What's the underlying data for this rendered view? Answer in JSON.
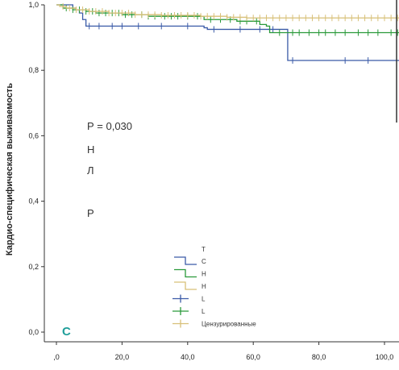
{
  "chart_data": {
    "type": "line",
    "subtype": "kaplan-meier",
    "ylabel": "Кардио-специфическая выживаемость",
    "xlim": [
      0,
      105
    ],
    "ylim": [
      0,
      1
    ],
    "xticks": [
      0,
      20,
      40,
      60,
      80,
      100
    ],
    "xtick_labels": [
      ",0",
      "20,0",
      "40,0",
      "60,0",
      "80,0",
      "100,0"
    ],
    "yticks": [
      0,
      0.2,
      0.4,
      0.6,
      0.8,
      1.0
    ],
    "ytick_labels": [
      "0,0",
      "0,2",
      "0,4",
      "0,6",
      "0,8",
      "1,0"
    ],
    "panel_label": "С",
    "annotation_lines": [
      "Р = 0,030",
      "Н",
      "Л",
      "Р"
    ],
    "series": [
      {
        "color": "#3b5ba8",
        "steps": [
          [
            0,
            1.0
          ],
          [
            5,
            0.99
          ],
          [
            6,
            0.985
          ],
          [
            7,
            0.975
          ],
          [
            8,
            0.955
          ],
          [
            9,
            0.935
          ],
          [
            45,
            0.93
          ],
          [
            46,
            0.925
          ],
          [
            70.5,
            0.83
          ],
          [
            105,
            0.83
          ]
        ],
        "censored": [
          10,
          13,
          17,
          20,
          25,
          32,
          40,
          48,
          56,
          62,
          66,
          72,
          88,
          95
        ]
      },
      {
        "color": "#2a9a3a",
        "steps": [
          [
            0,
            1.0
          ],
          [
            2,
            0.99
          ],
          [
            5,
            0.985
          ],
          [
            9,
            0.98
          ],
          [
            12,
            0.975
          ],
          [
            20,
            0.97
          ],
          [
            28,
            0.965
          ],
          [
            40,
            0.965
          ],
          [
            45,
            0.955
          ],
          [
            55,
            0.95
          ],
          [
            62,
            0.94
          ],
          [
            64,
            0.935
          ],
          [
            65,
            0.915
          ],
          [
            105,
            0.915
          ]
        ],
        "censored": [
          3,
          5,
          7,
          9,
          11,
          13,
          15,
          17,
          19,
          21,
          23,
          26,
          28,
          30,
          33,
          35,
          37,
          40,
          43,
          47,
          50,
          53,
          56,
          58,
          61,
          68,
          72,
          74,
          77,
          80,
          82,
          85,
          88,
          92,
          95,
          98,
          102,
          104
        ]
      },
      {
        "color": "#d8c078",
        "steps": [
          [
            0,
            1.0
          ],
          [
            1,
            0.995
          ],
          [
            3,
            0.99
          ],
          [
            6,
            0.985
          ],
          [
            10,
            0.98
          ],
          [
            16,
            0.975
          ],
          [
            24,
            0.97
          ],
          [
            32,
            0.968
          ],
          [
            44,
            0.965
          ],
          [
            52,
            0.962
          ],
          [
            58,
            0.96
          ],
          [
            105,
            0.958
          ]
        ],
        "censored": [
          2,
          4,
          6,
          8,
          10,
          12,
          14,
          16,
          18,
          20,
          22,
          24,
          26,
          28,
          30,
          32,
          34,
          36,
          38,
          40,
          42,
          44,
          46,
          48,
          50,
          52,
          54,
          56,
          58,
          60,
          62,
          64,
          66,
          68,
          70,
          72,
          74,
          76,
          78,
          80,
          82,
          84,
          86,
          88,
          90,
          92,
          94,
          96,
          98,
          100,
          102,
          104
        ]
      }
    ],
    "legend": {
      "title": "Т",
      "entries": [
        {
          "kind": "line",
          "color": "#3b5ba8",
          "label": "С"
        },
        {
          "kind": "line",
          "color": "#2a9a3a",
          "label": "Н"
        },
        {
          "kind": "line",
          "color": "#d8c078",
          "label": "Н"
        },
        {
          "kind": "cross",
          "color": "#3b5ba8",
          "label": "L"
        },
        {
          "kind": "cross",
          "color": "#2a9a3a",
          "label": "L"
        },
        {
          "kind": "cross",
          "color": "#d8c078",
          "label": "Цензурированные"
        }
      ]
    }
  }
}
